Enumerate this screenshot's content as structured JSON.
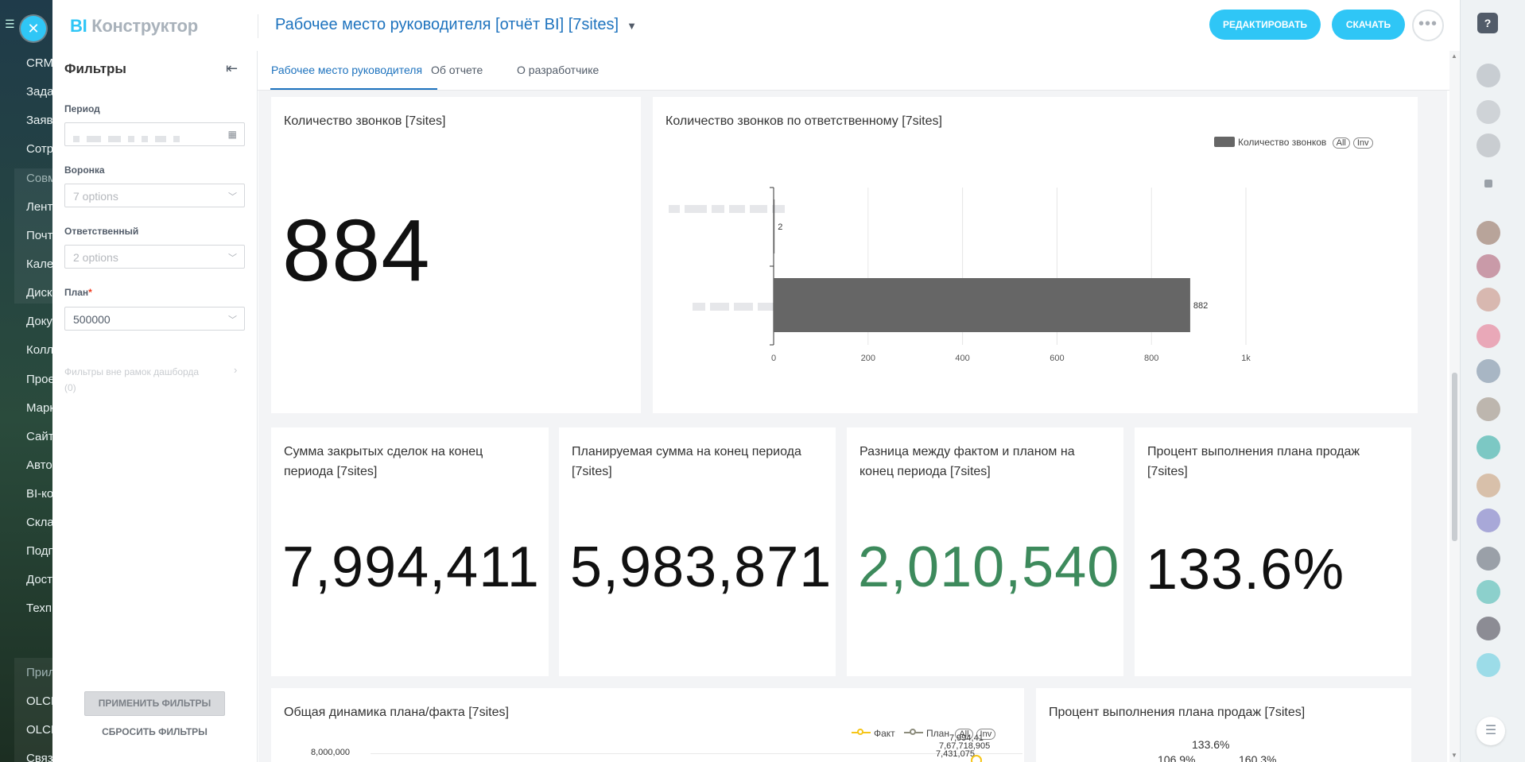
{
  "bitrix_menu": {
    "items": [
      "CRM",
      "Зада",
      "Заяв",
      "Сотр",
      "Совм",
      "Лент",
      "Почт",
      "Кале",
      "Диск",
      "Доку",
      "Колл",
      "Прое",
      "Марк",
      "Сайт",
      "Авто",
      "BI-ко",
      "Скла",
      "Подп",
      "Дост",
      "Техп",
      "Прил",
      "OLCI",
      "OLCI",
      "Связ"
    ]
  },
  "app": {
    "logo_bi": "BI",
    "logo_rest": "Конструктор",
    "report_title": "Рабочее место руководителя [отчёт BI] [7sites]",
    "edit_label": "РЕДАКТИРОВАТЬ",
    "download_label": "СКАЧАТЬ",
    "more_label": "•••"
  },
  "tabs": [
    {
      "label": "Рабочее место руководителя",
      "active": true
    },
    {
      "label": "Об отчете",
      "active": false
    },
    {
      "label": "О разработчике",
      "active": false
    }
  ],
  "filters": {
    "heading": "Фильтры",
    "period_label": "Период",
    "funnel_label": "Воронка",
    "funnel_placeholder": "7 options",
    "responsible_label": "Ответственный",
    "responsible_placeholder": "2 options",
    "plan_label": "План",
    "plan_required": "*",
    "plan_value": "500000",
    "outside_label": "Фильтры вне рамок дашборда",
    "outside_count": "(0)",
    "apply_label": "ПРИМЕНИТЬ ФИЛЬТРЫ",
    "reset_label": "СБРОСИТЬ ФИЛЬТРЫ"
  },
  "cards": {
    "calls_total": {
      "title": "Количество звонков [7sites]",
      "value": "884"
    },
    "calls_by_responsible": {
      "title": "Количество звонков по ответственному [7sites]"
    },
    "closed_sum": {
      "title_l1": "Сумма закрытых сделок на конец",
      "title_l2": "периода [7sites]",
      "value": "7,994,411"
    },
    "planned_sum": {
      "title_l1": "Планируемая сумма на конец периода",
      "title_l2": "[7sites]",
      "value": "5,983,871"
    },
    "difference": {
      "title_l1": "Разница между фактом и планом на",
      "title_l2": "конец периода [7sites]",
      "value": "2,010,540"
    },
    "plan_percent": {
      "title_l1": "Процент выполнения плана продаж",
      "title_l2": "[7sites]",
      "value": "133.6%"
    },
    "dynamics": {
      "title": "Общая динамика плана/факта [7sites]"
    },
    "plan_percent_chart": {
      "title": "Процент выполнения плана продаж [7sites]"
    }
  },
  "chart_data": [
    {
      "type": "bar",
      "orientation": "horizontal",
      "series": [
        {
          "name": "Количество звонков",
          "values": [
            2,
            882
          ],
          "color": "#666666"
        }
      ],
      "value_labels": [
        "2",
        "882"
      ],
      "xticks": [
        "0",
        "200",
        "400",
        "600",
        "800",
        "1k"
      ],
      "xlim": [
        0,
        1000
      ],
      "legend": "top-right",
      "legend_pills": [
        "All",
        "Inv"
      ],
      "grid": true
    },
    {
      "type": "line",
      "series": [
        {
          "name": "Факт",
          "color": "#f5c518"
        },
        {
          "name": "План",
          "color": "#8c8c7c"
        }
      ],
      "legend_pills": [
        "All",
        "Inv"
      ],
      "yticks": [
        "8,000,000"
      ],
      "value_labels": [
        "7,994,41",
        "7,67,718,905",
        "7,431,075"
      ],
      "legend": "top-right"
    },
    {
      "type": "line",
      "value_labels": [
        "133.6%",
        "106.9%",
        "160.3%"
      ]
    }
  ],
  "colors": {
    "accent": "#2fc6f6",
    "link": "#1e73be",
    "positive": "#3d8a5c",
    "bar": "#666666"
  }
}
